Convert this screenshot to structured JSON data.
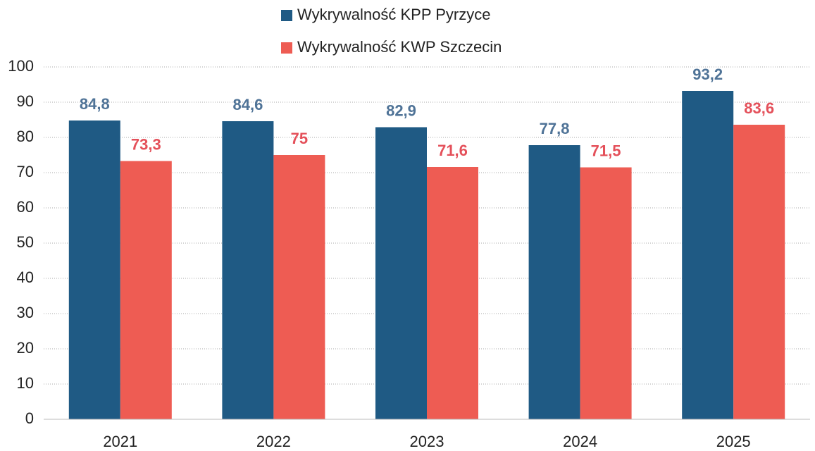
{
  "chart_data": {
    "type": "bar",
    "categories": [
      "2021",
      "2022",
      "2023",
      "2024",
      "2025"
    ],
    "series": [
      {
        "name": "Wykrywalność KPP Pyrzyce",
        "color": "#1f5a84",
        "label_color": "#4f7397",
        "values": [
          84.8,
          84.6,
          82.9,
          77.8,
          93.2
        ],
        "value_labels": [
          "84,8",
          "84,6",
          "82,9",
          "77,8",
          "93,2"
        ]
      },
      {
        "name": "Wykrywalność KWP Szczecin",
        "color": "#ee5c53",
        "label_color": "#e4505a",
        "values": [
          73.3,
          75,
          71.6,
          71.5,
          83.6
        ],
        "value_labels": [
          "73,3",
          "75",
          "71,6",
          "71,5",
          "83,6"
        ]
      }
    ],
    "ylim": [
      0,
      100
    ],
    "yticks": [
      0,
      10,
      20,
      30,
      40,
      50,
      60,
      70,
      80,
      90,
      100
    ],
    "grid": true,
    "legend": "top"
  }
}
